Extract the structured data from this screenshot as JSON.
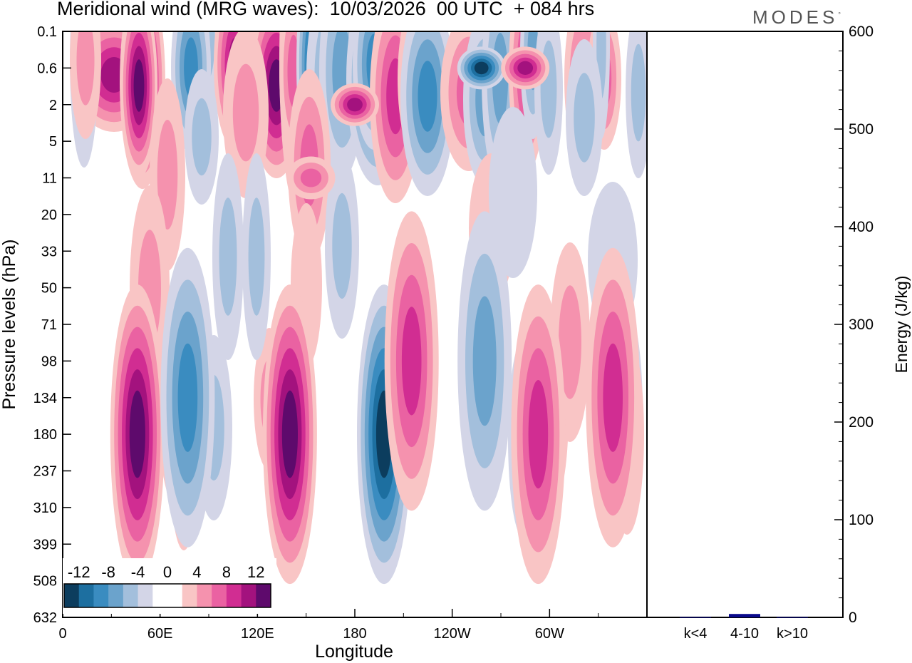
{
  "title": "Meridional wind (MRG waves):  10/03/2026  00 UTC  + 084 hrs",
  "brand": "MODES",
  "chart_data": [
    {
      "type": "heatmap",
      "title": "Meridional wind (MRG waves)",
      "xlabel": "Longitude",
      "ylabel": "Pressure levels (hPa)",
      "x_ticks": [
        "0",
        "60E",
        "120E",
        "180",
        "120W",
        "60W"
      ],
      "x_tick_values": [
        0,
        60,
        120,
        180,
        240,
        300
      ],
      "xlim": [
        0,
        360
      ],
      "y_ticks": [
        "0.1",
        "0.6",
        "2",
        "5",
        "11",
        "20",
        "33",
        "50",
        "71",
        "98",
        "134",
        "180",
        "237",
        "310",
        "399",
        "508",
        "632"
      ],
      "colorbar": {
        "labels": [
          "-12",
          "-8",
          "-4",
          "0",
          "4",
          "8",
          "12"
        ],
        "colors": [
          "#0c3d5e",
          "#1d6fa0",
          "#3a8cc0",
          "#6ba3cc",
          "#a3bfdc",
          "#d3d5e7",
          "#ffffff",
          "#ffffff",
          "#f9c5c5",
          "#f592ae",
          "#ea62a2",
          "#d12d92",
          "#a3127e",
          "#5e0a6c"
        ]
      },
      "features": [
        {
          "lon": 46,
          "level": "180",
          "value": 13
        },
        {
          "lon": 77,
          "level": "134",
          "value": -9
        },
        {
          "lon": 140,
          "level": "180",
          "value": 13
        },
        {
          "lon": 198,
          "level": "180",
          "value": -12
        },
        {
          "lon": 215,
          "level": "98",
          "value": 8
        },
        {
          "lon": 260,
          "level": "98",
          "value": -7
        },
        {
          "lon": 293,
          "level": "180",
          "value": 9
        },
        {
          "lon": 339,
          "level": "134",
          "value": 8
        },
        {
          "lon": 258,
          "level": "0.6",
          "value": -13
        },
        {
          "lon": 285,
          "level": "0.6",
          "value": 10
        },
        {
          "lon": 180,
          "level": "2",
          "value": 11
        },
        {
          "lon": 153,
          "level": "11",
          "value": 7
        }
      ]
    },
    {
      "type": "bar",
      "categories": [
        "k<4",
        "4-10",
        "k>10"
      ],
      "values": [
        0.3,
        3.5,
        0.3
      ],
      "ylabel": "Energy (J/kg)",
      "ylim": [
        0,
        600
      ],
      "y_ticks": [
        0,
        100,
        200,
        300,
        400,
        500,
        600
      ],
      "bar_color": "#0a0a8c"
    }
  ]
}
